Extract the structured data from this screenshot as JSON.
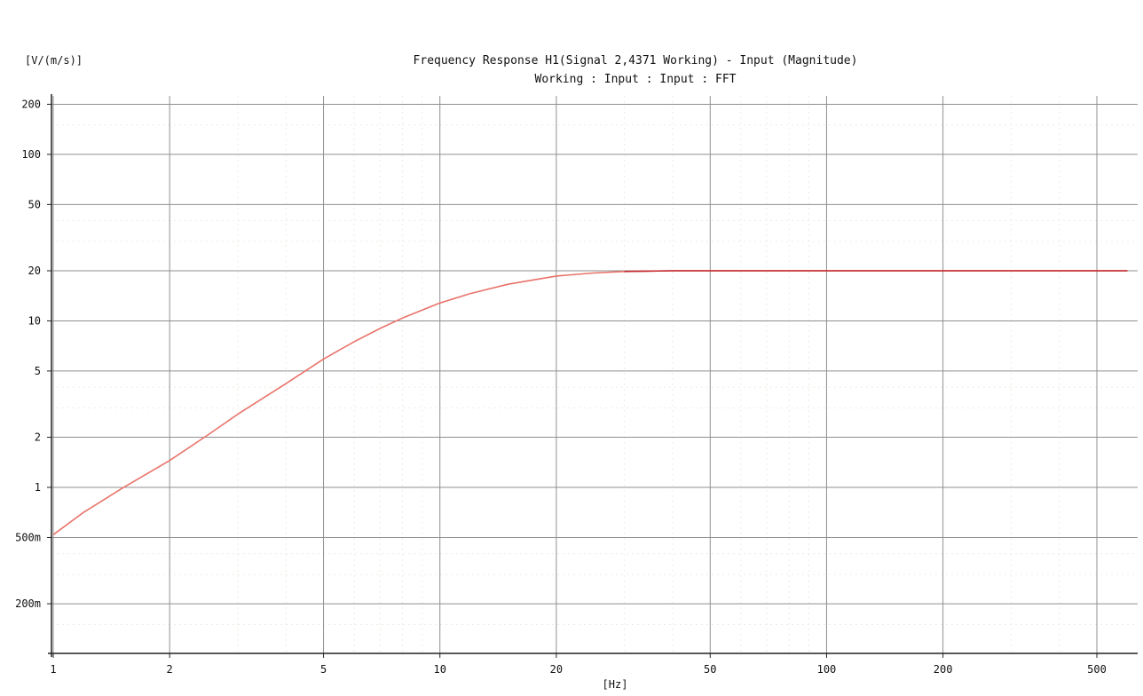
{
  "chart_data": {
    "type": "line",
    "title": "Frequency Response H1(Signal 2,4371 Working) - Input (Magnitude)",
    "subtitle": "Working : Input : Input : FFT",
    "ylabel": "[V/(m/s)]",
    "xlabel": "[Hz]",
    "x_scale": "log",
    "y_scale": "log",
    "xlim": [
      1,
      600
    ],
    "ylim": [
      0.1,
      220
    ],
    "grid": true,
    "x_ticks": [
      {
        "value": 1,
        "label": "1"
      },
      {
        "value": 2,
        "label": "2"
      },
      {
        "value": 5,
        "label": "5"
      },
      {
        "value": 10,
        "label": "10"
      },
      {
        "value": 20,
        "label": "20"
      },
      {
        "value": 50,
        "label": "50"
      },
      {
        "value": 100,
        "label": "100"
      },
      {
        "value": 200,
        "label": "200"
      },
      {
        "value": 500,
        "label": "500"
      }
    ],
    "y_ticks": [
      {
        "value": 200,
        "label": "200"
      },
      {
        "value": 100,
        "label": "100"
      },
      {
        "value": 50,
        "label": "50"
      },
      {
        "value": 20,
        "label": "20"
      },
      {
        "value": 10,
        "label": "10"
      },
      {
        "value": 5,
        "label": "5"
      },
      {
        "value": 2,
        "label": "2"
      },
      {
        "value": 1,
        "label": "1"
      },
      {
        "value": 0.5,
        "label": "500m"
      },
      {
        "value": 0.2,
        "label": "200m"
      }
    ],
    "series": [
      {
        "color": "#e8736a",
        "points": [
          [
            1,
            0.52
          ],
          [
            1.2,
            0.71
          ],
          [
            1.5,
            0.98
          ],
          [
            2,
            1.45
          ],
          [
            2.5,
            2.05
          ],
          [
            3,
            2.75
          ],
          [
            4,
            4.2
          ],
          [
            5,
            5.9
          ],
          [
            6,
            7.5
          ],
          [
            7,
            9.0
          ],
          [
            8,
            10.4
          ],
          [
            10,
            12.8
          ],
          [
            12,
            14.6
          ],
          [
            15,
            16.6
          ],
          [
            20,
            18.6
          ],
          [
            25,
            19.4
          ],
          [
            30,
            19.8
          ],
          [
            40,
            20
          ],
          [
            60,
            20
          ],
          [
            100,
            20
          ],
          [
            200,
            20
          ],
          [
            400,
            20
          ],
          [
            600,
            20
          ]
        ]
      }
    ]
  }
}
